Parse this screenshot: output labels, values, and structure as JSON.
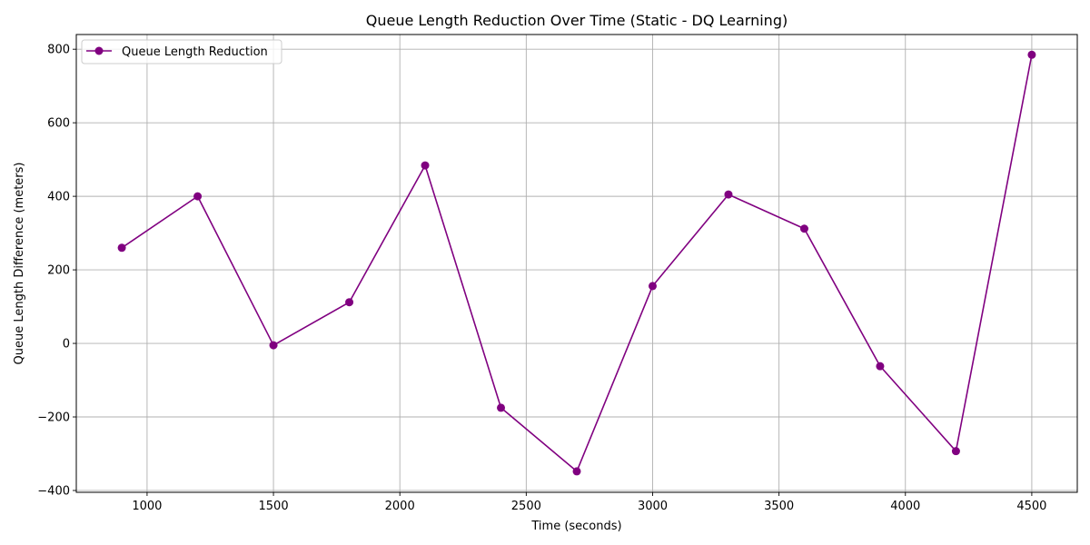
{
  "chart_data": {
    "type": "line",
    "title": "Queue Length Reduction Over Time (Static - DQ Learning)",
    "xlabel": "Time (seconds)",
    "ylabel": "Queue Length Difference (meters)",
    "xlim": [
      720,
      4680
    ],
    "ylim": [
      -405,
      840
    ],
    "xticks": [
      1000,
      1500,
      2000,
      2500,
      3000,
      3500,
      4000,
      4500
    ],
    "yticks": [
      -400,
      -200,
      0,
      200,
      400,
      600,
      800
    ],
    "grid": true,
    "legend_position": "top-left",
    "series": [
      {
        "name": "Queue Length Reduction",
        "color": "#800080",
        "marker": "circle",
        "x": [
          900,
          1200,
          1500,
          1800,
          2100,
          2400,
          2700,
          3000,
          3300,
          3600,
          3900,
          4200,
          4500
        ],
        "y": [
          260,
          400,
          -5,
          112,
          484,
          -175,
          -348,
          156,
          405,
          312,
          -62,
          -293,
          785
        ]
      }
    ]
  }
}
